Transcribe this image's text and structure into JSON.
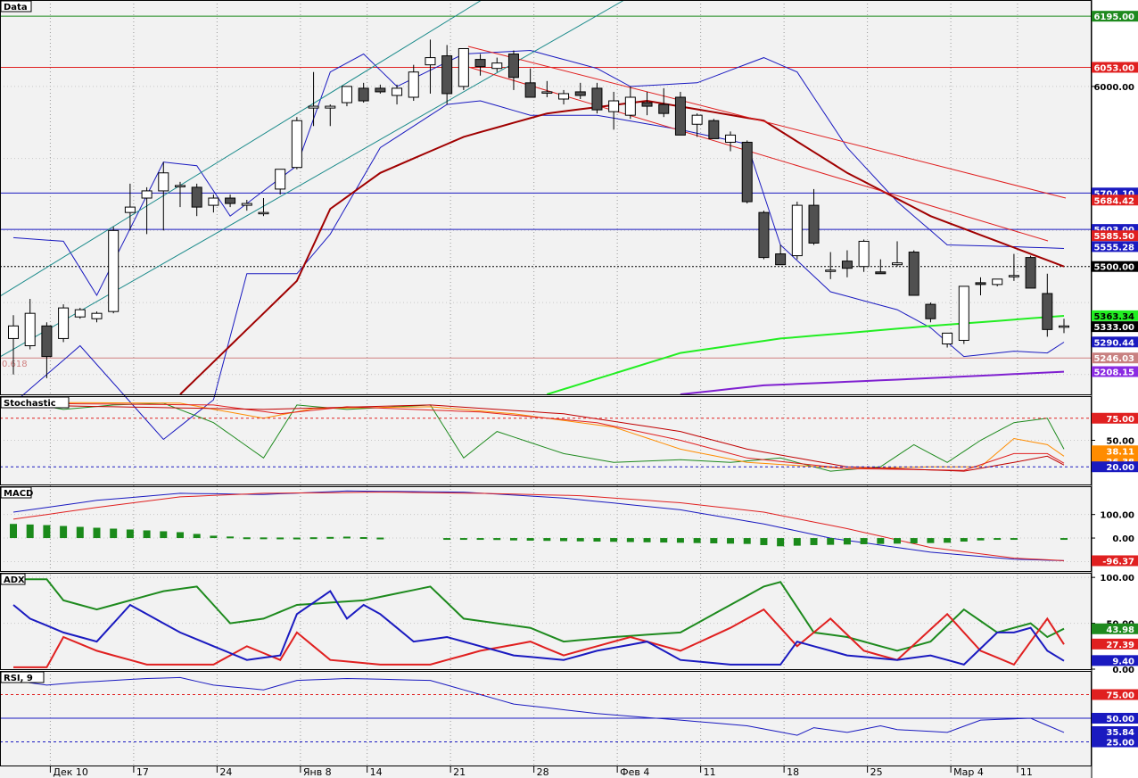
{
  "chart_data": [
    {
      "panel": "price",
      "type": "candlestick",
      "title": "Data",
      "x_labels": [
        "Дек 10",
        "17",
        "24",
        "Янв 8",
        "14",
        "21",
        "28",
        "Фев 4",
        "11",
        "18",
        "25",
        "Мар 4",
        "11"
      ],
      "y_axis_ticks": [
        "6000.00",
        "5500.00"
      ],
      "ylim": [
        5145,
        6240
      ],
      "candles": [
        {
          "o": 5300,
          "h": 5365,
          "l": 5200,
          "c": 5335
        },
        {
          "o": 5280,
          "h": 5410,
          "l": 5270,
          "c": 5370
        },
        {
          "o": 5335,
          "h": 5345,
          "l": 5190,
          "c": 5250
        },
        {
          "o": 5300,
          "h": 5395,
          "l": 5290,
          "c": 5385
        },
        {
          "o": 5360,
          "h": 5385,
          "l": 5355,
          "c": 5380
        },
        {
          "o": 5355,
          "h": 5375,
          "l": 5345,
          "c": 5370
        },
        {
          "o": 5375,
          "h": 5610,
          "l": 5370,
          "c": 5600
        },
        {
          "o": 5650,
          "h": 5730,
          "l": 5600,
          "c": 5665
        },
        {
          "o": 5690,
          "h": 5720,
          "l": 5590,
          "c": 5710
        },
        {
          "o": 5710,
          "h": 5790,
          "l": 5600,
          "c": 5760
        },
        {
          "o": 5725,
          "h": 5735,
          "l": 5665,
          "c": 5725
        },
        {
          "o": 5720,
          "h": 5730,
          "l": 5640,
          "c": 5665
        },
        {
          "o": 5670,
          "h": 5700,
          "l": 5650,
          "c": 5690
        },
        {
          "o": 5690,
          "h": 5700,
          "l": 5665,
          "c": 5675
        },
        {
          "o": 5670,
          "h": 5685,
          "l": 5655,
          "c": 5675
        },
        {
          "o": 5650,
          "h": 5690,
          "l": 5640,
          "c": 5650
        },
        {
          "o": 5715,
          "h": 5760,
          "l": 5700,
          "c": 5770
        },
        {
          "o": 5775,
          "h": 5915,
          "l": 5770,
          "c": 5905
        },
        {
          "o": 5940,
          "h": 6040,
          "l": 5890,
          "c": 5945
        },
        {
          "o": 5940,
          "h": 5950,
          "l": 5890,
          "c": 5945
        },
        {
          "o": 5955,
          "h": 6000,
          "l": 5945,
          "c": 6000
        },
        {
          "o": 5995,
          "h": 6010,
          "l": 5955,
          "c": 5960
        },
        {
          "o": 5995,
          "h": 6005,
          "l": 5980,
          "c": 5985
        },
        {
          "o": 5975,
          "h": 6005,
          "l": 5950,
          "c": 5995
        },
        {
          "o": 5970,
          "h": 6060,
          "l": 5960,
          "c": 6040
        },
        {
          "o": 6060,
          "h": 6130,
          "l": 5980,
          "c": 6080
        },
        {
          "o": 6085,
          "h": 6115,
          "l": 5950,
          "c": 5980
        },
        {
          "o": 6000,
          "h": 6100,
          "l": 5990,
          "c": 6105
        },
        {
          "o": 6075,
          "h": 6090,
          "l": 6030,
          "c": 6055
        },
        {
          "o": 6050,
          "h": 6080,
          "l": 6040,
          "c": 6065
        },
        {
          "o": 6090,
          "h": 6100,
          "l": 5990,
          "c": 6025
        },
        {
          "o": 6010,
          "h": 6050,
          "l": 5970,
          "c": 5970
        },
        {
          "o": 5985,
          "h": 6015,
          "l": 5970,
          "c": 5985
        },
        {
          "o": 5965,
          "h": 5990,
          "l": 5950,
          "c": 5980
        },
        {
          "o": 5985,
          "h": 6010,
          "l": 5965,
          "c": 5975
        },
        {
          "o": 5995,
          "h": 6010,
          "l": 5925,
          "c": 5935
        },
        {
          "o": 5930,
          "h": 5985,
          "l": 5880,
          "c": 5960
        },
        {
          "o": 5920,
          "h": 6000,
          "l": 5910,
          "c": 5970
        },
        {
          "o": 5955,
          "h": 5985,
          "l": 5920,
          "c": 5945
        },
        {
          "o": 5950,
          "h": 5995,
          "l": 5915,
          "c": 5925
        },
        {
          "o": 5970,
          "h": 5985,
          "l": 5870,
          "c": 5865
        },
        {
          "o": 5895,
          "h": 5925,
          "l": 5860,
          "c": 5920
        },
        {
          "o": 5905,
          "h": 5910,
          "l": 5855,
          "c": 5855
        },
        {
          "o": 5845,
          "h": 5875,
          "l": 5820,
          "c": 5865
        },
        {
          "o": 5845,
          "h": 5850,
          "l": 5675,
          "c": 5680
        },
        {
          "o": 5650,
          "h": 5655,
          "l": 5520,
          "c": 5525
        },
        {
          "o": 5535,
          "h": 5560,
          "l": 5505,
          "c": 5505
        },
        {
          "o": 5530,
          "h": 5680,
          "l": 5520,
          "c": 5670
        },
        {
          "o": 5670,
          "h": 5715,
          "l": 5560,
          "c": 5565
        },
        {
          "o": 5490,
          "h": 5540,
          "l": 5465,
          "c": 5490
        },
        {
          "o": 5515,
          "h": 5545,
          "l": 5470,
          "c": 5495
        },
        {
          "o": 5500,
          "h": 5575,
          "l": 5485,
          "c": 5570
        },
        {
          "o": 5485,
          "h": 5520,
          "l": 5480,
          "c": 5480
        },
        {
          "o": 5505,
          "h": 5570,
          "l": 5500,
          "c": 5510
        },
        {
          "o": 5540,
          "h": 5545,
          "l": 5420,
          "c": 5420
        },
        {
          "o": 5395,
          "h": 5400,
          "l": 5345,
          "c": 5355
        },
        {
          "o": 5285,
          "h": 5315,
          "l": 5275,
          "c": 5315
        },
        {
          "o": 5295,
          "h": 5445,
          "l": 5285,
          "c": 5445
        },
        {
          "o": 5455,
          "h": 5470,
          "l": 5420,
          "c": 5450
        },
        {
          "o": 5450,
          "h": 5465,
          "l": 5445,
          "c": 5465
        },
        {
          "o": 5475,
          "h": 5535,
          "l": 5460,
          "c": 5475
        },
        {
          "o": 5525,
          "h": 5530,
          "l": 5440,
          "c": 5440
        },
        {
          "o": 5425,
          "h": 5480,
          "l": 5305,
          "c": 5325
        },
        {
          "o": 5335,
          "h": 5355,
          "l": 5315,
          "c": 5335
        }
      ],
      "horizontal_levels": [
        {
          "value": 6195.0,
          "label": "6195.00",
          "color": "#1e8a1e"
        },
        {
          "value": 6053.0,
          "label": "6053.00",
          "color": "#e02020"
        },
        {
          "value": 5704.1,
          "label": "5704.10",
          "color": "#1a1ac0"
        },
        {
          "value": 5603.0,
          "label": "5603.00",
          "color": "#1a1ac0"
        },
        {
          "value": 5500.0,
          "label": "5500.00",
          "color": "#000000"
        },
        {
          "value": 5246.03,
          "label": "5246.03",
          "color": "#d08080"
        }
      ],
      "price_tags": [
        {
          "value": 5684.42,
          "label": "5684.42",
          "bg": "#e02020",
          "fg": "#ffffff"
        },
        {
          "value": 5585.5,
          "label": "5585.50",
          "bg": "#e02020",
          "fg": "#ffffff"
        },
        {
          "value": 5555.28,
          "label": "5555.28",
          "bg": "#1a1ac0",
          "fg": "#ffffff"
        },
        {
          "value": 5363.34,
          "label": "5363.34",
          "bg": "#22ee22",
          "fg": "#000000"
        },
        {
          "value": 5333.0,
          "label": "5333.00",
          "bg": "#000000",
          "fg": "#ffffff"
        },
        {
          "value": 5290.44,
          "label": "5290.44",
          "bg": "#1a1ac0",
          "fg": "#ffffff"
        },
        {
          "value": 5208.15,
          "label": "5208.15",
          "bg": "#8a2be2",
          "fg": "#ffffff"
        }
      ],
      "fib_label": "0.618"
    },
    {
      "panel": "stochastic",
      "type": "line",
      "title": "Stochastic",
      "ylim": [
        0,
        100
      ],
      "y_axis_ticks": [
        "75.00",
        "50.00",
        "20.00"
      ],
      "levels": [
        75,
        20
      ],
      "tags": [
        {
          "value": 75,
          "label": "75.00",
          "bg": "#e02020",
          "fg": "#ffffff"
        },
        {
          "value": 38.11,
          "label": "38.11",
          "bg": "#ff8c00",
          "fg": "#ffffff"
        },
        {
          "value": 26.38,
          "label": "26.38",
          "bg": "#ff8c00",
          "fg": "#ffffff"
        },
        {
          "value": 20,
          "label": "20.00",
          "bg": "#1a1ac0",
          "fg": "#ffffff"
        }
      ]
    },
    {
      "panel": "macd",
      "type": "bar+line",
      "title": "MACD",
      "ylim": [
        -140,
        220
      ],
      "y_axis_ticks": [
        "100.00",
        "0.00"
      ],
      "tags": [
        {
          "value": -96.37,
          "label": "-96.37",
          "bg": "#e02020",
          "fg": "#ffffff"
        }
      ]
    },
    {
      "panel": "adx",
      "type": "line",
      "title": "ADX",
      "ylim": [
        0,
        105
      ],
      "y_axis_ticks": [
        "100.00",
        "50.00",
        "0.00"
      ],
      "tags": [
        {
          "value": 43.98,
          "label": "43.98",
          "bg": "#1e8a1e",
          "fg": "#ffffff"
        },
        {
          "value": 27.39,
          "label": "27.39",
          "bg": "#e02020",
          "fg": "#ffffff"
        },
        {
          "value": 9.4,
          "label": "9.40",
          "bg": "#1a1ac0",
          "fg": "#ffffff"
        }
      ]
    },
    {
      "panel": "rsi",
      "type": "line",
      "title": "RSI, 9",
      "ylim": [
        0,
        100
      ],
      "y_axis_ticks": [
        "75.00",
        "50.00",
        "25.00"
      ],
      "levels": [
        75,
        50,
        25
      ],
      "tags": [
        {
          "value": 75,
          "label": "75.00",
          "bg": "#e02020",
          "fg": "#ffffff"
        },
        {
          "value": 50,
          "label": "50.00",
          "bg": "#1a1ac0",
          "fg": "#ffffff"
        },
        {
          "value": 35.84,
          "label": "35.84",
          "bg": "#1a1ac0",
          "fg": "#ffffff"
        },
        {
          "value": 25,
          "label": "25.00",
          "bg": "#1a1ac0",
          "fg": "#ffffff"
        }
      ]
    }
  ]
}
